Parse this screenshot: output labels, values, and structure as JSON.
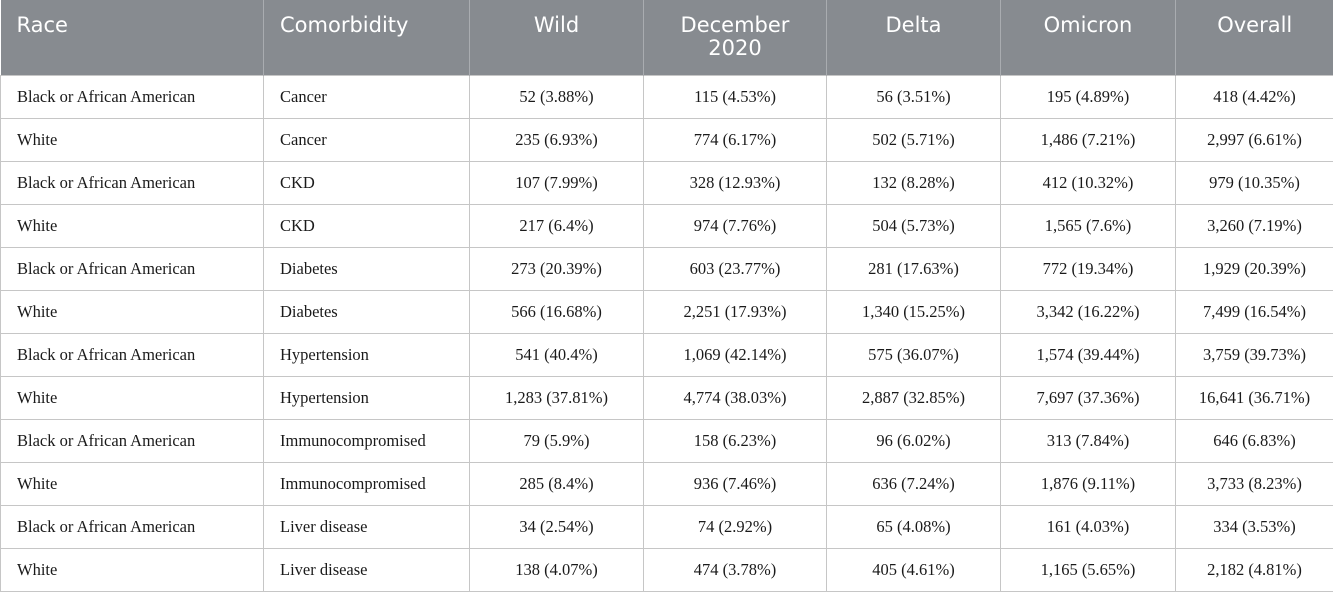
{
  "headers": [
    "Race",
    "Comorbidity",
    "Wild",
    "December 2020",
    "Delta",
    "Omicron",
    "Overall"
  ],
  "rows": [
    [
      "Black or African American",
      "Cancer",
      "52 (3.88%)",
      "115 (4.53%)",
      "56 (3.51%)",
      "195 (4.89%)",
      "418 (4.42%)"
    ],
    [
      "White",
      "Cancer",
      "235 (6.93%)",
      "774 (6.17%)",
      "502 (5.71%)",
      "1,486 (7.21%)",
      "2,997 (6.61%)"
    ],
    [
      "Black or African American",
      "CKD",
      "107 (7.99%)",
      "328 (12.93%)",
      "132 (8.28%)",
      "412 (10.32%)",
      "979 (10.35%)"
    ],
    [
      "White",
      "CKD",
      "217 (6.4%)",
      "974 (7.76%)",
      "504 (5.73%)",
      "1,565 (7.6%)",
      "3,260 (7.19%)"
    ],
    [
      "Black or African American",
      "Diabetes",
      "273 (20.39%)",
      "603 (23.77%)",
      "281 (17.63%)",
      "772 (19.34%)",
      "1,929 (20.39%)"
    ],
    [
      "White",
      "Diabetes",
      "566 (16.68%)",
      "2,251 (17.93%)",
      "1,340 (15.25%)",
      "3,342 (16.22%)",
      "7,499 (16.54%)"
    ],
    [
      "Black or African American",
      "Hypertension",
      "541 (40.4%)",
      "1,069 (42.14%)",
      "575 (36.07%)",
      "1,574 (39.44%)",
      "3,759 (39.73%)"
    ],
    [
      "White",
      "Hypertension",
      "1,283 (37.81%)",
      "4,774 (38.03%)",
      "2,887 (32.85%)",
      "7,697 (37.36%)",
      "16,641 (36.71%)"
    ],
    [
      "Black or African American",
      "Immunocompromised",
      "79 (5.9%)",
      "158 (6.23%)",
      "96 (6.02%)",
      "313 (7.84%)",
      "646 (6.83%)"
    ],
    [
      "White",
      "Immunocompromised",
      "285 (8.4%)",
      "936 (7.46%)",
      "636 (7.24%)",
      "1,876 (9.11%)",
      "3,733 (8.23%)"
    ],
    [
      "Black or African American",
      "Liver disease",
      "34 (2.54%)",
      "74 (2.92%)",
      "65 (4.08%)",
      "161 (4.03%)",
      "334 (3.53%)"
    ],
    [
      "White",
      "Liver disease",
      "138 (4.07%)",
      "474 (3.78%)",
      "405 (4.61%)",
      "1,165 (5.65%)",
      "2,182 (4.81%)"
    ]
  ],
  "colors": {
    "header_bg": "#878b90",
    "header_text": "#ffffff",
    "grid": "#c6c6c6"
  }
}
